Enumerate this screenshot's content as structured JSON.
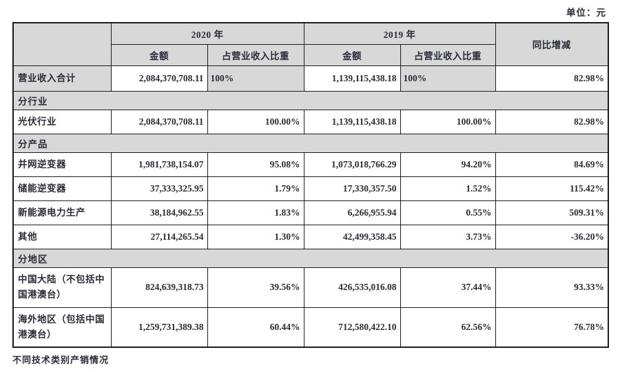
{
  "page": {
    "unit_label": "单位：元",
    "footer_note": "不同技术类别产销情况"
  },
  "table": {
    "columns": {
      "year_2020": "2020 年",
      "year_2019": "2019 年",
      "amount": "金额",
      "proportion": "占营业收入比重",
      "yoy_change": "同比增减"
    },
    "rows": [
      {
        "type": "data",
        "total_row": true,
        "label": "营业收入合计",
        "amount_2020": "2,084,370,708.11",
        "pct_2020": "100%",
        "amount_2019": "1,139,115,438.18",
        "pct_2019": "100%",
        "yoy": "82.98%"
      },
      {
        "type": "section",
        "label": "分行业"
      },
      {
        "type": "data",
        "label": "光伏行业",
        "amount_2020": "2,084,370,708.11",
        "pct_2020": "100.00%",
        "amount_2019": "1,139,115,438.18",
        "pct_2019": "100.00%",
        "yoy": "82.98%"
      },
      {
        "type": "section",
        "label": "分产品"
      },
      {
        "type": "data",
        "label": "并网逆变器",
        "amount_2020": "1,981,738,154.07",
        "pct_2020": "95.08%",
        "amount_2019": "1,073,018,766.29",
        "pct_2019": "94.20%",
        "yoy": "84.69%"
      },
      {
        "type": "data",
        "label": "储能逆变器",
        "amount_2020": "37,333,325.95",
        "pct_2020": "1.79%",
        "amount_2019": "17,330,357.50",
        "pct_2019": "1.52%",
        "yoy": "115.42%"
      },
      {
        "type": "data",
        "label": "新能源电力生产",
        "amount_2020": "38,184,962.55",
        "pct_2020": "1.83%",
        "amount_2019": "6,266,955.94",
        "pct_2019": "0.55%",
        "yoy": "509.31%"
      },
      {
        "type": "data",
        "label": "其他",
        "amount_2020": "27,114,265.54",
        "pct_2020": "1.30%",
        "amount_2019": "42,499,358.45",
        "pct_2019": "3.73%",
        "yoy": "-36.20%"
      },
      {
        "type": "section",
        "label": "分地区"
      },
      {
        "type": "data",
        "tall": true,
        "label": "中国大陆（不包括中国港澳台）",
        "amount_2020": "824,639,318.73",
        "pct_2020": "39.56%",
        "amount_2019": "426,535,016.08",
        "pct_2019": "37.44%",
        "yoy": "93.33%"
      },
      {
        "type": "data",
        "tall": true,
        "label": "海外地区（包括中国港澳台）",
        "amount_2020": "1,259,731,389.38",
        "pct_2020": "60.44%",
        "amount_2019": "712,580,422.10",
        "pct_2019": "62.56%",
        "yoy": "76.78%"
      }
    ],
    "colors": {
      "header_bg": "#d8d8d8",
      "border": "#1c1c1c",
      "text": "#2c2c38"
    }
  }
}
